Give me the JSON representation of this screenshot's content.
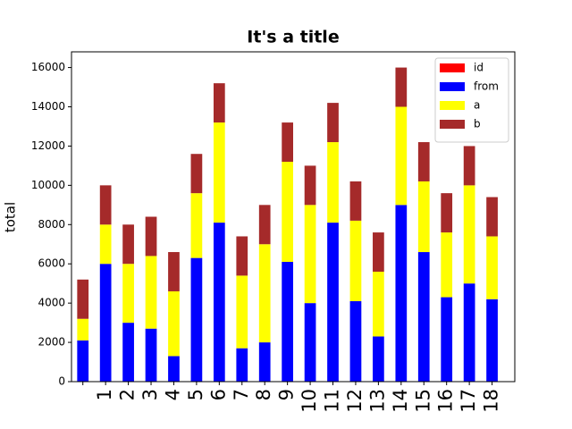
{
  "chart_data": {
    "type": "stacked-bar",
    "title": "It's a title",
    "y_label": "total",
    "categories": [
      null,
      "1",
      "2",
      "3",
      "4",
      "5",
      "6",
      "7",
      "8",
      "9",
      "10",
      "11",
      "12",
      "13",
      "14",
      "15",
      "16",
      "17",
      "18"
    ],
    "series": [
      {
        "name": "id",
        "color": "#ff0000",
        "values": [
          0,
          0,
          0,
          0,
          0,
          0,
          0,
          0,
          0,
          0,
          0,
          0,
          0,
          0,
          0,
          0,
          0,
          0,
          0
        ]
      },
      {
        "name": "from",
        "color": "#0000ff",
        "values": [
          2100,
          6000,
          3000,
          2700,
          1300,
          6300,
          8100,
          1700,
          2000,
          6100,
          4000,
          8100,
          4100,
          2300,
          9000,
          6600,
          4300,
          5000,
          4200
        ]
      },
      {
        "name": "a",
        "color": "#ffff00",
        "values": [
          1100,
          2000,
          3000,
          3700,
          3300,
          3300,
          5100,
          3700,
          5000,
          5100,
          5000,
          4100,
          4100,
          3300,
          5000,
          3600,
          3300,
          5000,
          3200
        ]
      },
      {
        "name": "b",
        "color": "#a52a2a",
        "values": [
          2000,
          2000,
          2000,
          2000,
          2000,
          2000,
          2000,
          2000,
          2000,
          2000,
          2000,
          2000,
          2000,
          2000,
          2000,
          2000,
          2000,
          2000,
          2000
        ]
      }
    ],
    "ylim": [
      0,
      16800
    ],
    "yticks": [
      0,
      2000,
      4000,
      6000,
      8000,
      10000,
      12000,
      14000,
      16000
    ],
    "legend": "upper right"
  }
}
